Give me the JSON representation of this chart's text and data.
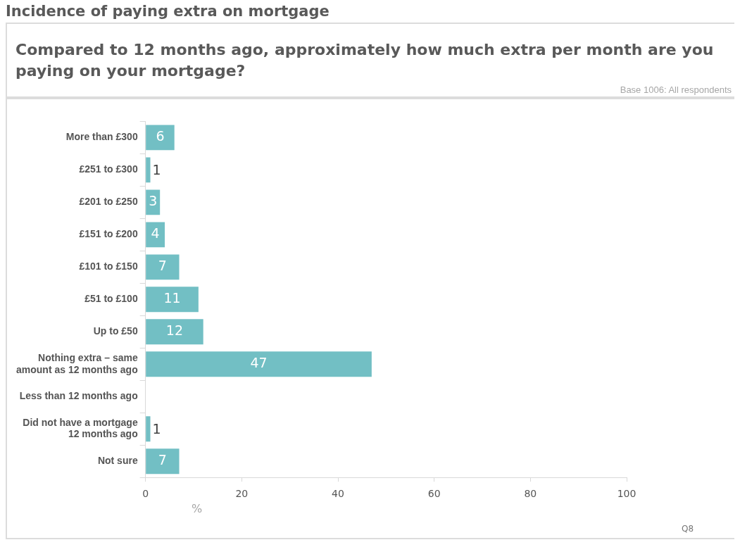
{
  "chart_data": {
    "type": "bar",
    "orientation": "horizontal",
    "title": "Incidence of paying extra on mortgage",
    "subtitle": "Compared to 12 months ago, approximately how much extra per month are you paying on your mortgage?",
    "categories": [
      "More than £300",
      "£251 to £300",
      "£201 to £250",
      "£151 to £200",
      "£101 to £150",
      "£51 to £100",
      "Up to £50",
      "Nothing extra – same amount as 12 months ago",
      "Less than 12 months ago",
      "Did not have a mortgage 12 months ago",
      "Not sure"
    ],
    "values": [
      6,
      1,
      3,
      4,
      7,
      11,
      12,
      47,
      null,
      1,
      7
    ],
    "color": "#72bfc4",
    "xlim": [
      0,
      100
    ],
    "xticks": [
      0,
      20,
      40,
      60,
      80,
      100
    ],
    "xlabel": "%",
    "grid": false,
    "legend": false,
    "data_labels": true,
    "annotations": [
      "Base 1006: All respondents",
      "Q8"
    ]
  }
}
